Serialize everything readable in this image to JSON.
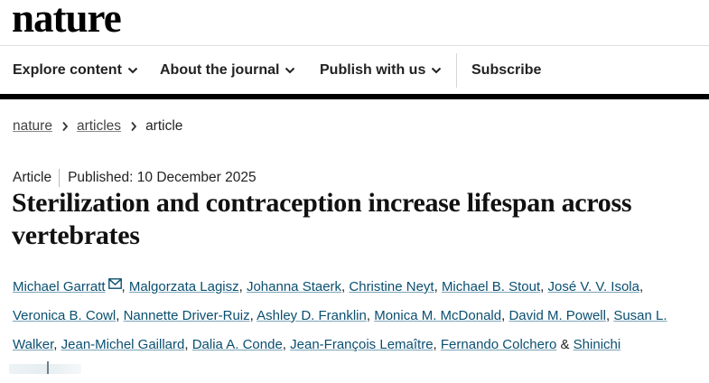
{
  "header": {
    "logo": "nature"
  },
  "nav": {
    "items": [
      {
        "label": "Explore content"
      },
      {
        "label": "About the journal"
      },
      {
        "label": "Publish with us"
      },
      {
        "label": "Subscribe"
      }
    ]
  },
  "breadcrumb": {
    "items": [
      "nature",
      "articles",
      "article"
    ]
  },
  "article": {
    "type": "Article",
    "published": "Published: 10 December 2025",
    "title": "Sterilization and contraception increase lifespan across vertebrates",
    "authors": [
      "Michael Garratt",
      "Malgorzata Lagisz",
      "Johanna Staerk",
      "Christine Neyt",
      "Michael B. Stout",
      "José V. V. Isola",
      "Veronica B. Cowl",
      "Nannette Driver-Ruiz",
      "Ashley D. Franklin",
      "Monica M. McDonald",
      "David M. Powell",
      "Susan L. Walker",
      "Jean-Michel Gaillard",
      "Dalia A. Conde",
      "Jean-François Lemaître",
      "Fernando Colchero",
      "Shinichi"
    ],
    "last_joiner": "&"
  },
  "icons": {
    "chevron": "chevron-down-icon",
    "crumb_sep": "chevron-right-icon",
    "mail": "mail-icon"
  },
  "colors": {
    "link": "#0a4f70",
    "rule": "#000000"
  }
}
